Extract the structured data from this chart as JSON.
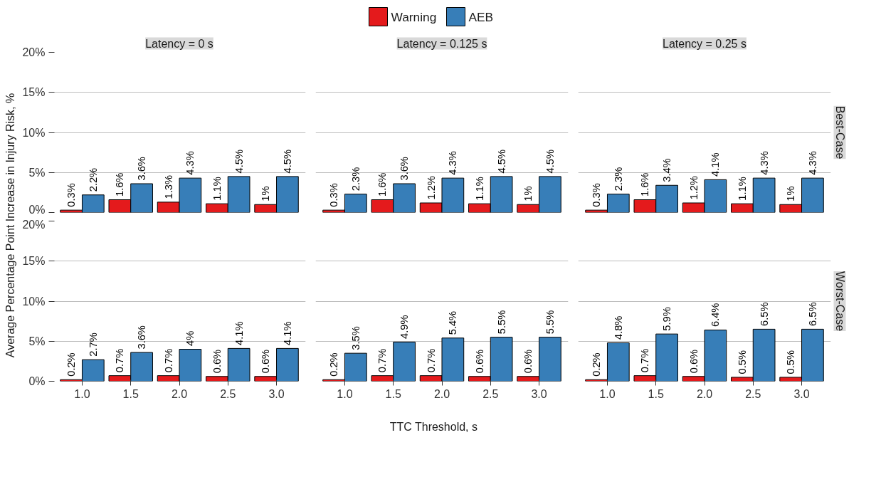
{
  "chart_data": [
    {
      "type": "bar",
      "title": "Latency = 0 s",
      "ylabel": "Average Percentage Point Increase in Injury Risk, %",
      "categories": [
        "1.0",
        "1.5",
        "2.0",
        "2.5",
        "3.0"
      ],
      "ylim": [
        0,
        20
      ],
      "yticks": [
        {
          "value": 0,
          "label": "0%"
        },
        {
          "value": 5,
          "label": "5%"
        },
        {
          "value": 10,
          "label": "10%"
        },
        {
          "value": 15,
          "label": "15%"
        },
        {
          "value": 20,
          "label": "20%"
        }
      ],
      "grid": "y",
      "legend": "top",
      "tick_labels": "y",
      "series": [
        {
          "name": "Warning",
          "color": "#e41a1c",
          "values": [
            0.3,
            1.6,
            1.3,
            1.1,
            1
          ],
          "value_labels": [
            "0.3%",
            "1.6%",
            "1.3%",
            "1.1%",
            "1%"
          ]
        },
        {
          "name": "AEB",
          "color": "#377eb8",
          "values": [
            2.2,
            3.6,
            4.3,
            4.5,
            4.5
          ],
          "value_labels": [
            "2.2%",
            "3.6%",
            "4.3%",
            "4.5%",
            "4.5%"
          ]
        }
      ]
    },
    {
      "type": "bar",
      "title": "Latency = 0.125 s",
      "categories": [
        "1.0",
        "1.5",
        "2.0",
        "2.5",
        "3.0"
      ],
      "ylim": [
        0,
        20
      ],
      "yticks": [
        {
          "value": 0,
          "label": null
        },
        {
          "value": 5,
          "label": null
        },
        {
          "value": 10,
          "label": null
        },
        {
          "value": 15,
          "label": null
        },
        {
          "value": 20,
          "label": null
        }
      ],
      "grid": "y",
      "tick_labels": false,
      "series": [
        {
          "color": "#e41a1c",
          "values": [
            0.3,
            1.6,
            1.2,
            1.1,
            1
          ],
          "value_labels": [
            "0.3%",
            "1.6%",
            "1.2%",
            "1.1%",
            "1%"
          ]
        },
        {
          "color": "#377eb8",
          "values": [
            2.3,
            3.6,
            4.3,
            4.5,
            4.5
          ],
          "value_labels": [
            "2.3%",
            "3.6%",
            "4.3%",
            "4.5%",
            "4.5%"
          ]
        }
      ]
    },
    {
      "type": "bar",
      "title": "Latency = 0.25 s",
      "y2label": "Best-Case",
      "categories": [
        "1.0",
        "1.5",
        "2.0",
        "2.5",
        "3.0"
      ],
      "ylim": [
        0,
        20
      ],
      "yticks": [
        {
          "value": 0,
          "label": null
        },
        {
          "value": 5,
          "label": null
        },
        {
          "value": 10,
          "label": null
        },
        {
          "value": 15,
          "label": null
        },
        {
          "value": 20,
          "label": null
        }
      ],
      "grid": "y",
      "tick_labels": false,
      "series": [
        {
          "color": "#e41a1c",
          "values": [
            0.3,
            1.6,
            1.2,
            1.1,
            1
          ],
          "value_labels": [
            "0.3%",
            "1.6%",
            "1.2%",
            "1.1%",
            "1%"
          ]
        },
        {
          "color": "#377eb8",
          "values": [
            2.3,
            3.4,
            4.1,
            4.3,
            4.3
          ],
          "value_labels": [
            "2.3%",
            "3.4%",
            "4.1%",
            "4.3%",
            "4.3%"
          ]
        }
      ]
    },
    {
      "type": "bar",
      "categories": [
        "1.0",
        "1.5",
        "2.0",
        "2.5",
        "3.0"
      ],
      "ylim": [
        0,
        20
      ],
      "yticks": [
        {
          "value": 0,
          "label": "0%"
        },
        {
          "value": 5,
          "label": "5%"
        },
        {
          "value": 10,
          "label": "10%"
        },
        {
          "value": 15,
          "label": "15%"
        },
        {
          "value": 20,
          "label": "20%"
        }
      ],
      "grid": "y",
      "series": [
        {
          "color": "#e41a1c",
          "values": [
            0.2,
            0.7,
            0.7,
            0.6,
            0.6
          ],
          "value_labels": [
            "0.2%",
            "0.7%",
            "0.7%",
            "0.6%",
            "0.6%"
          ]
        },
        {
          "color": "#377eb8",
          "values": [
            2.7,
            3.6,
            4,
            4.1,
            4.1
          ],
          "value_labels": [
            "2.7%",
            "3.6%",
            "4%",
            "4.1%",
            "4.1%"
          ]
        }
      ]
    },
    {
      "type": "bar",
      "xlabel": "TTC Threshold, s",
      "categories": [
        "1.0",
        "1.5",
        "2.0",
        "2.5",
        "3.0"
      ],
      "ylim": [
        0,
        20
      ],
      "yticks": [
        {
          "value": 0,
          "label": null
        },
        {
          "value": 5,
          "label": null
        },
        {
          "value": 10,
          "label": null
        },
        {
          "value": 15,
          "label": null
        },
        {
          "value": 20,
          "label": null
        }
      ],
      "grid": "y",
      "tick_labels": "x",
      "series": [
        {
          "color": "#e41a1c",
          "values": [
            0.2,
            0.7,
            0.7,
            0.6,
            0.6
          ],
          "value_labels": [
            "0.2%",
            "0.7%",
            "0.7%",
            "0.6%",
            "0.6%"
          ]
        },
        {
          "color": "#377eb8",
          "values": [
            3.5,
            4.9,
            5.4,
            5.5,
            5.5
          ],
          "value_labels": [
            "3.5%",
            "4.9%",
            "5.4%",
            "5.5%",
            "5.5%"
          ]
        }
      ]
    },
    {
      "type": "bar",
      "y2label": "Worst-Case",
      "categories": [
        "1.0",
        "1.5",
        "2.0",
        "2.5",
        "3.0"
      ],
      "ylim": [
        0,
        20
      ],
      "yticks": [
        {
          "value": 0,
          "label": null
        },
        {
          "value": 5,
          "label": null
        },
        {
          "value": 10,
          "label": null
        },
        {
          "value": 15,
          "label": null
        },
        {
          "value": 20,
          "label": null
        }
      ],
      "grid": "y",
      "tick_labels": "x",
      "series": [
        {
          "color": "#e41a1c",
          "values": [
            0.2,
            0.7,
            0.6,
            0.5,
            0.5
          ],
          "value_labels": [
            "0.2%",
            "0.7%",
            "0.6%",
            "0.5%",
            "0.5%"
          ]
        },
        {
          "color": "#377eb8",
          "values": [
            4.8,
            5.9,
            6.4,
            6.5,
            6.5
          ],
          "value_labels": [
            "4.8%",
            "5.9%",
            "6.4%",
            "6.5%",
            "6.5%"
          ]
        }
      ]
    }
  ]
}
